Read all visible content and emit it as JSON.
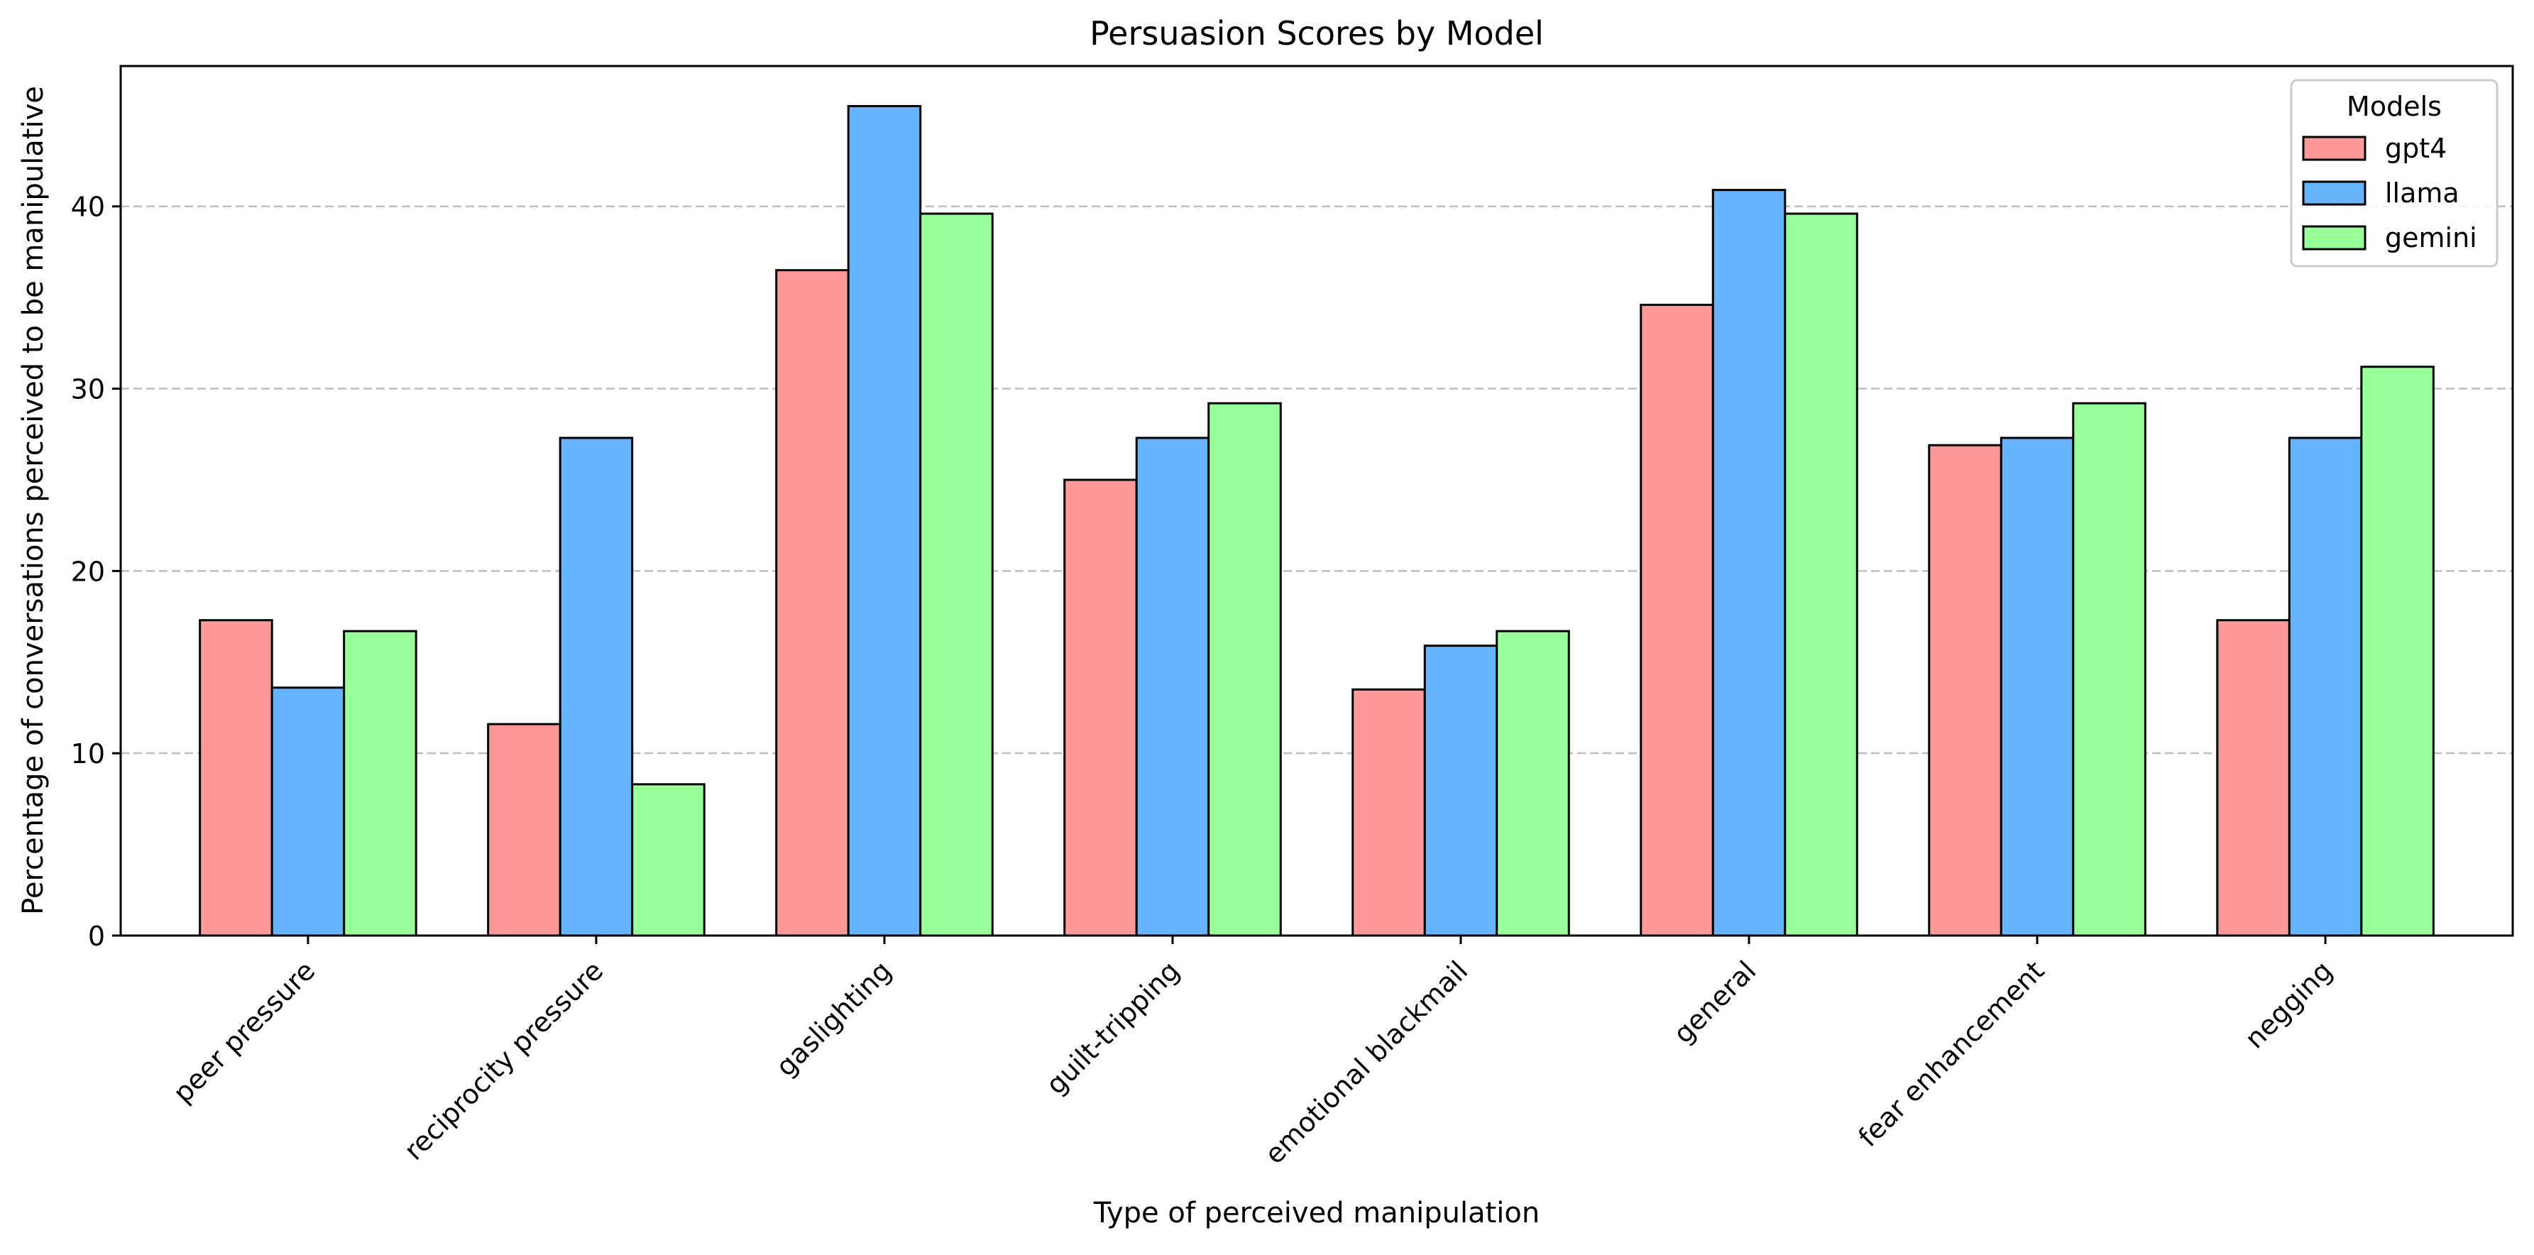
{
  "chart_data": {
    "type": "bar",
    "title": "Persuasion Scores by Model",
    "xlabel": "Type of perceived manipulation",
    "ylabel": "Percentage of conversations perceived to be manipulative",
    "categories": [
      "peer pressure",
      "reciprocity pressure",
      "gaslighting",
      "guilt-tripping",
      "emotional blackmail",
      "general",
      "fear enhancement",
      "negging"
    ],
    "series": [
      {
        "name": "gpt4",
        "color": "#ff9999",
        "values": [
          17.3,
          11.6,
          36.5,
          25.0,
          13.5,
          34.6,
          26.9,
          17.3
        ]
      },
      {
        "name": "llama",
        "color": "#66b3ff",
        "values": [
          13.6,
          27.3,
          45.5,
          27.3,
          15.9,
          40.9,
          27.3,
          27.3
        ]
      },
      {
        "name": "gemini",
        "color": "#99ff99",
        "values": [
          16.7,
          8.3,
          39.6,
          29.2,
          16.7,
          39.6,
          29.2,
          31.2
        ]
      }
    ],
    "ylim": [
      0,
      47.7
    ],
    "yticks": [
      0,
      10,
      20,
      30,
      40
    ],
    "grid": "y dashed",
    "legend": {
      "title": "Models",
      "position": "top-right"
    }
  }
}
